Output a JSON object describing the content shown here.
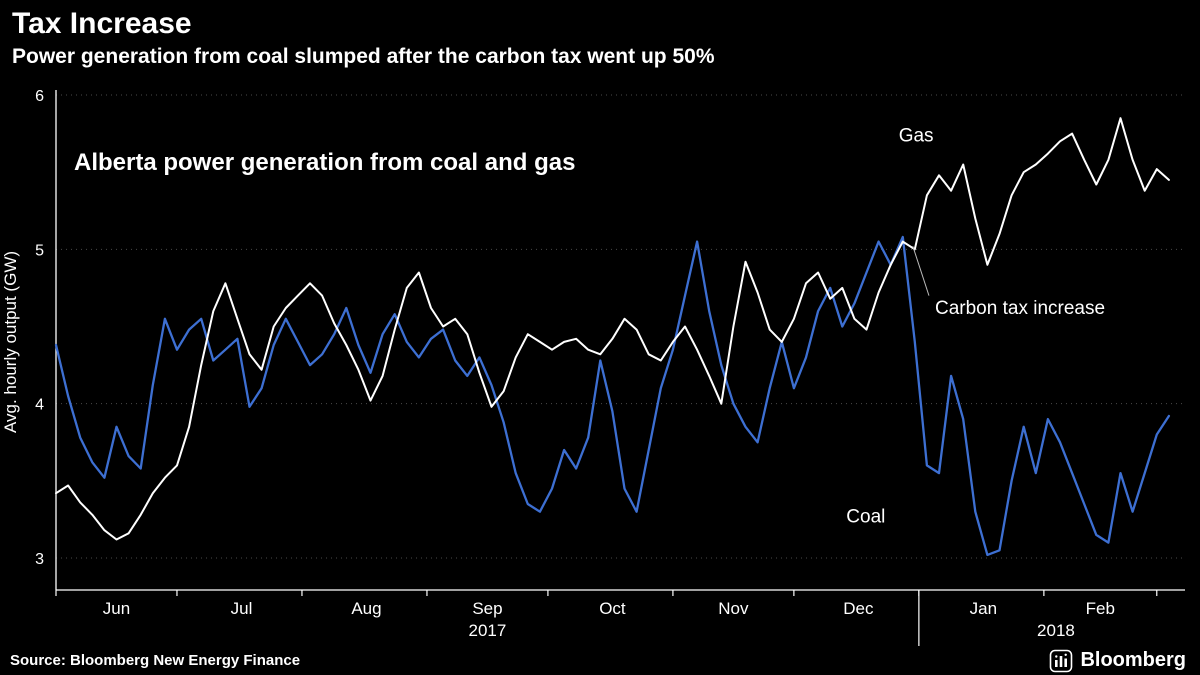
{
  "header": {
    "title": "Tax Increase",
    "subtitle": "Power generation from coal slumped after the carbon tax went up 50%"
  },
  "footer": {
    "source": "Source: Bloomberg New Energy Finance",
    "brand": "Bloomberg"
  },
  "colors": {
    "background": "#000000",
    "axis": "#ffffff",
    "grid": "#4a4a4a",
    "gas": "#ffffff",
    "coal": "#3d6fd2",
    "leader": "#bbbbbb"
  },
  "chart_data": {
    "type": "line",
    "title": "Alberta power generation from coal and gas",
    "ylabel": "Avg. hourly output (GW)",
    "ylim": [
      3,
      6
    ],
    "yticks": [
      3,
      4,
      5,
      6
    ],
    "grid": "dotted-horizontal",
    "x_unit": "days since Jun 1, 2017",
    "x_domain_days": 280,
    "month_boundaries": [
      0,
      30,
      61,
      92,
      122,
      153,
      183,
      214,
      245,
      273
    ],
    "month_ticks": [
      {
        "label": "Jun",
        "day": 15
      },
      {
        "label": "Jul",
        "day": 46
      },
      {
        "label": "Aug",
        "day": 77
      },
      {
        "label": "Sep",
        "day": 107
      },
      {
        "label": "Oct",
        "day": 138
      },
      {
        "label": "Nov",
        "day": 168
      },
      {
        "label": "Dec",
        "day": 199
      },
      {
        "label": "Jan",
        "day": 230
      },
      {
        "label": "Feb",
        "day": 259
      }
    ],
    "year_labels": [
      {
        "label": "2017",
        "day": 107
      },
      {
        "label": "2018",
        "day": 248
      }
    ],
    "year_divider_day": 214,
    "x": [
      0,
      3,
      6,
      9,
      12,
      15,
      18,
      21,
      24,
      27,
      30,
      33,
      36,
      39,
      42,
      45,
      48,
      51,
      54,
      57,
      60,
      63,
      66,
      69,
      72,
      75,
      78,
      81,
      84,
      87,
      90,
      93,
      96,
      99,
      102,
      105,
      108,
      111,
      114,
      117,
      120,
      123,
      126,
      129,
      132,
      135,
      138,
      141,
      144,
      147,
      150,
      153,
      156,
      159,
      162,
      165,
      168,
      171,
      174,
      177,
      180,
      183,
      186,
      189,
      192,
      195,
      198,
      201,
      204,
      207,
      210,
      213,
      216,
      219,
      222,
      225,
      228,
      231,
      234,
      237,
      240,
      243,
      246,
      249,
      252,
      255,
      258,
      261,
      264,
      267,
      270,
      273,
      276
    ],
    "series": [
      {
        "name": "Gas",
        "color": "#ffffff",
        "values": [
          3.42,
          3.47,
          3.36,
          3.28,
          3.18,
          3.12,
          3.16,
          3.28,
          3.42,
          3.52,
          3.6,
          3.85,
          4.25,
          4.6,
          4.78,
          4.55,
          4.32,
          4.22,
          4.5,
          4.62,
          4.7,
          4.78,
          4.7,
          4.52,
          4.38,
          4.22,
          4.02,
          4.18,
          4.48,
          4.75,
          4.85,
          4.62,
          4.5,
          4.55,
          4.45,
          4.2,
          3.98,
          4.08,
          4.3,
          4.45,
          4.4,
          4.35,
          4.4,
          4.42,
          4.35,
          4.32,
          4.42,
          4.55,
          4.48,
          4.32,
          4.28,
          4.4,
          4.5,
          4.35,
          4.18,
          4.0,
          4.5,
          4.92,
          4.72,
          4.48,
          4.4,
          4.55,
          4.78,
          4.85,
          4.68,
          4.75,
          4.55,
          4.48,
          4.72,
          4.9,
          5.05,
          5.0,
          5.35,
          5.48,
          5.38,
          5.55,
          5.2,
          4.9,
          5.1,
          5.35,
          5.5,
          5.55,
          5.62,
          5.7,
          5.75,
          5.58,
          5.42,
          5.58,
          5.85,
          5.58,
          5.38,
          5.52,
          5.45
        ]
      },
      {
        "name": "Coal",
        "color": "#3d6fd2",
        "values": [
          4.38,
          4.05,
          3.78,
          3.62,
          3.52,
          3.85,
          3.66,
          3.58,
          4.12,
          4.55,
          4.35,
          4.48,
          4.55,
          4.28,
          4.35,
          4.42,
          3.98,
          4.1,
          4.38,
          4.55,
          4.4,
          4.25,
          4.32,
          4.45,
          4.62,
          4.38,
          4.2,
          4.45,
          4.58,
          4.4,
          4.3,
          4.42,
          4.48,
          4.28,
          4.18,
          4.3,
          4.12,
          3.88,
          3.55,
          3.35,
          3.3,
          3.45,
          3.7,
          3.58,
          3.78,
          4.28,
          3.95,
          3.45,
          3.3,
          3.7,
          4.1,
          4.35,
          4.7,
          5.05,
          4.6,
          4.25,
          4.0,
          3.85,
          3.75,
          4.1,
          4.4,
          4.1,
          4.3,
          4.6,
          4.75,
          4.5,
          4.65,
          4.85,
          5.05,
          4.9,
          5.08,
          4.4,
          3.6,
          3.55,
          4.18,
          3.9,
          3.3,
          3.02,
          3.05,
          3.5,
          3.85,
          3.55,
          3.9,
          3.75,
          3.55,
          3.35,
          3.15,
          3.1,
          3.55,
          3.3,
          3.55,
          3.8,
          3.92
        ]
      }
    ],
    "annotations": [
      {
        "id": "gas-label",
        "text": "Gas",
        "day": 209,
        "value": 5.7,
        "anchor": "start"
      },
      {
        "id": "coal-label",
        "text": "Coal",
        "day": 196,
        "value": 3.23,
        "anchor": "start"
      },
      {
        "id": "carbon-tax-label",
        "text": "Carbon tax increase",
        "day": 218,
        "value": 4.58,
        "anchor": "start"
      }
    ],
    "leader_line": {
      "from": {
        "day": 216.5,
        "value": 4.7
      },
      "to": {
        "day": 212.5,
        "value": 5.02
      }
    },
    "legend_position": "inline-annotations"
  }
}
